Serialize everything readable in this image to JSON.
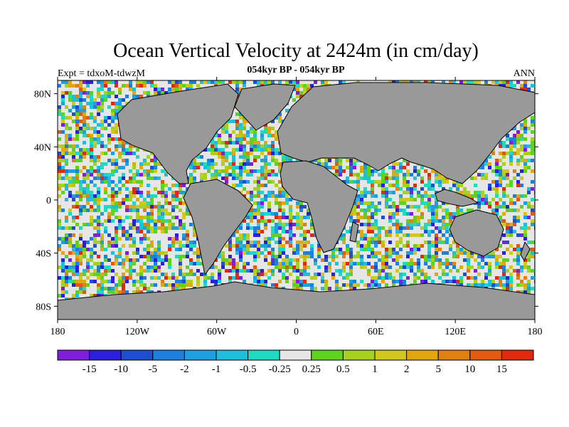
{
  "title": "Ocean Vertical Velocity at 2424m (in cm/day)",
  "left_label": "Expt = tdxoM-tdwzM",
  "center_label": "054kyr BP - 054kyr BP",
  "right_label": "ANN",
  "chart_data": {
    "type": "heatmap",
    "projection": "cylindrical-equidistant",
    "xlim": [
      -180,
      180
    ],
    "ylim": [
      -90,
      90
    ],
    "x_ticks": [
      {
        "value": -180,
        "label": "180"
      },
      {
        "value": -120,
        "label": "120W"
      },
      {
        "value": -60,
        "label": "60W"
      },
      {
        "value": 0,
        "label": "0"
      },
      {
        "value": 60,
        "label": "60E"
      },
      {
        "value": 120,
        "label": "120E"
      },
      {
        "value": 180,
        "label": "180"
      }
    ],
    "y_ticks": [
      {
        "value": 80,
        "label": "80N"
      },
      {
        "value": 40,
        "label": "40N"
      },
      {
        "value": 0,
        "label": "0"
      },
      {
        "value": -40,
        "label": "40S"
      },
      {
        "value": -80,
        "label": "80S"
      }
    ],
    "land_color": "#999999",
    "colorbar": {
      "colors": [
        "#7f1fdc",
        "#2b1fd9",
        "#1f4fd0",
        "#1f7fdc",
        "#1fa0dc",
        "#1fbfd9",
        "#1fd9c0",
        "#e6e6e6",
        "#5fd11f",
        "#a8d11f",
        "#d1c81f",
        "#e0a810",
        "#e08010",
        "#e05a10",
        "#e02a10"
      ],
      "labels": [
        "-15",
        "-10",
        "-5",
        "-2",
        "-1",
        "-0.5",
        "-0.25",
        "0.25",
        "0.5",
        "1",
        "2",
        "5",
        "10",
        "15"
      ]
    }
  }
}
